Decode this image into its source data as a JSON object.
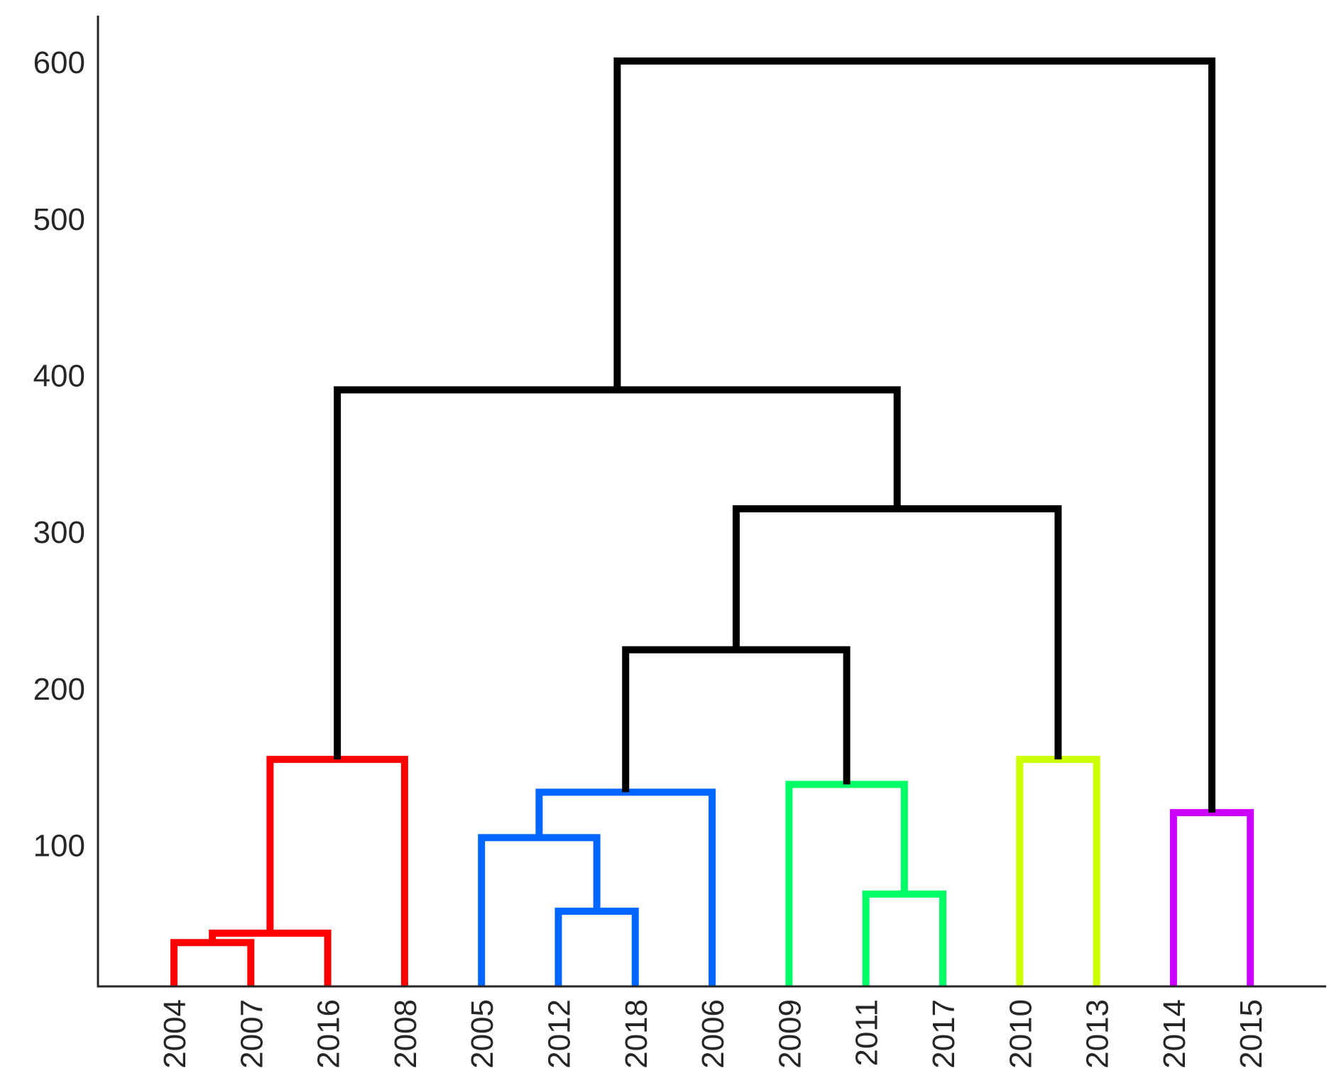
{
  "chart_data": {
    "type": "dendrogram",
    "title": "",
    "xlabel": "",
    "ylabel": "",
    "ylim": [
      10,
      630
    ],
    "yticks": [
      100,
      200,
      300,
      400,
      500,
      600
    ],
    "leaves": [
      "2004",
      "2007",
      "2016",
      "2008",
      "2005",
      "2012",
      "2018",
      "2006",
      "2009",
      "2011",
      "2017",
      "2010",
      "2013",
      "2014",
      "2015"
    ],
    "links": [
      {
        "left": "2004",
        "right": "2007",
        "height": 38,
        "color": "#ff0000"
      },
      {
        "left": "2004+2007",
        "right": "2016",
        "height": 44,
        "color": "#ff0000"
      },
      {
        "left": "2004+2007+2016",
        "right": "2008",
        "height": 155,
        "color": "#ff0000"
      },
      {
        "left": "2012",
        "right": "2018",
        "height": 58,
        "color": "#0066ff"
      },
      {
        "left": "2005",
        "right": "2012+2018",
        "height": 105,
        "color": "#0066ff"
      },
      {
        "left": "2005+2012+2018",
        "right": "2006",
        "height": 134,
        "color": "#0066ff"
      },
      {
        "left": "2011",
        "right": "2017",
        "height": 69,
        "color": "#00ff66"
      },
      {
        "left": "2009",
        "right": "2011+2017",
        "height": 139,
        "color": "#00ff66"
      },
      {
        "left": "2010",
        "right": "2013",
        "height": 155,
        "color": "#ccff00"
      },
      {
        "left": "2014",
        "right": "2015",
        "height": 121,
        "color": "#cc00ff"
      },
      {
        "left": "blue-cluster",
        "right": "green-cluster",
        "height": 225,
        "color": "#000000"
      },
      {
        "left": "blue+green",
        "right": "yellow-cluster",
        "height": 315,
        "color": "#000000"
      },
      {
        "left": "red-cluster",
        "right": "blue+green+yellow",
        "height": 391,
        "color": "#000000"
      },
      {
        "left": "red+blue+green+yellow",
        "right": "magenta-cluster",
        "height": 601,
        "color": "#000000"
      }
    ],
    "grid": false,
    "legend": "none"
  }
}
